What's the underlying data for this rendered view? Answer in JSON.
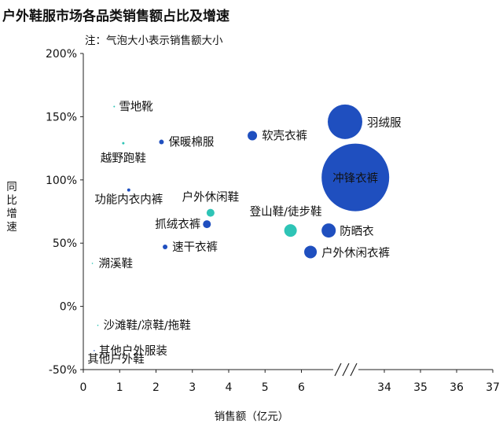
{
  "title": "户外鞋服市场各品类销售额占比及增速",
  "note": "注：气泡大小表示销售额大小",
  "chart_data": {
    "type": "scatter",
    "title": "户外鞋服市场各品类销售额占比及增速",
    "subtitle": "注：气泡大小表示销售额大小",
    "xlabel": "销售额（亿元）",
    "ylabel": "同比增速",
    "x_ticks": [
      "0",
      "1",
      "2",
      "3",
      "4",
      "5",
      "6",
      "34",
      "35",
      "36",
      "37"
    ],
    "y_ticks": [
      "200%",
      "150%",
      "100%",
      "50%",
      "0%",
      "-50%"
    ],
    "x_axis_break": [
      7,
      33
    ],
    "ylim": [
      -50,
      200
    ],
    "grid": false,
    "points": [
      {
        "label": "雪地靴",
        "x": 0.85,
        "y": 158,
        "color": "#2ec4b6"
      },
      {
        "label": "保暖棉服",
        "x": 2.15,
        "y": 130,
        "color": "#1f4fbf"
      },
      {
        "label": "越野跑鞋",
        "x": 1.1,
        "y": 129,
        "color": "#2ec4b6"
      },
      {
        "label": "软壳衣裤",
        "x": 4.65,
        "y": 135,
        "color": "#1f4fbf"
      },
      {
        "label": "羽绒服",
        "x": 7.3,
        "y": 146,
        "color": "#1f4fbf"
      },
      {
        "label": "冲锋衣裤",
        "x": 33.2,
        "y": 102,
        "color": "#1f4fbf"
      },
      {
        "label": "功能内衣内裤",
        "x": 1.25,
        "y": 92,
        "color": "#1f4fbf"
      },
      {
        "label": "户外休闲鞋",
        "x": 3.5,
        "y": 74,
        "color": "#2ec4b6"
      },
      {
        "label": "抓绒衣裤",
        "x": 3.4,
        "y": 65,
        "color": "#1f4fbf"
      },
      {
        "label": "登山鞋/徒步鞋",
        "x": 5.7,
        "y": 60,
        "color": "#2ec4b6"
      },
      {
        "label": "防晒衣",
        "x": 6.75,
        "y": 60,
        "color": "#1f4fbf"
      },
      {
        "label": "速干衣裤",
        "x": 2.25,
        "y": 47,
        "color": "#1f4fbf"
      },
      {
        "label": "户外休闲衣裤",
        "x": 6.25,
        "y": 43,
        "color": "#1f4fbf"
      },
      {
        "label": "溯溪鞋",
        "x": 0.25,
        "y": 34,
        "color": "#2ec4b6"
      },
      {
        "label": "沙滩鞋/凉鞋/拖鞋",
        "x": 0.4,
        "y": -15,
        "color": "#2ec4b6"
      },
      {
        "label": "其他户外服装",
        "x": 0.3,
        "y": -35,
        "color": "#1f4fbf"
      },
      {
        "label": "其他户外鞋",
        "x": 0.2,
        "y": -43,
        "color": "#2ec4b6"
      }
    ],
    "colors": {
      "apparel": "#1f4fbf",
      "footwear": "#2ec4b6"
    }
  }
}
